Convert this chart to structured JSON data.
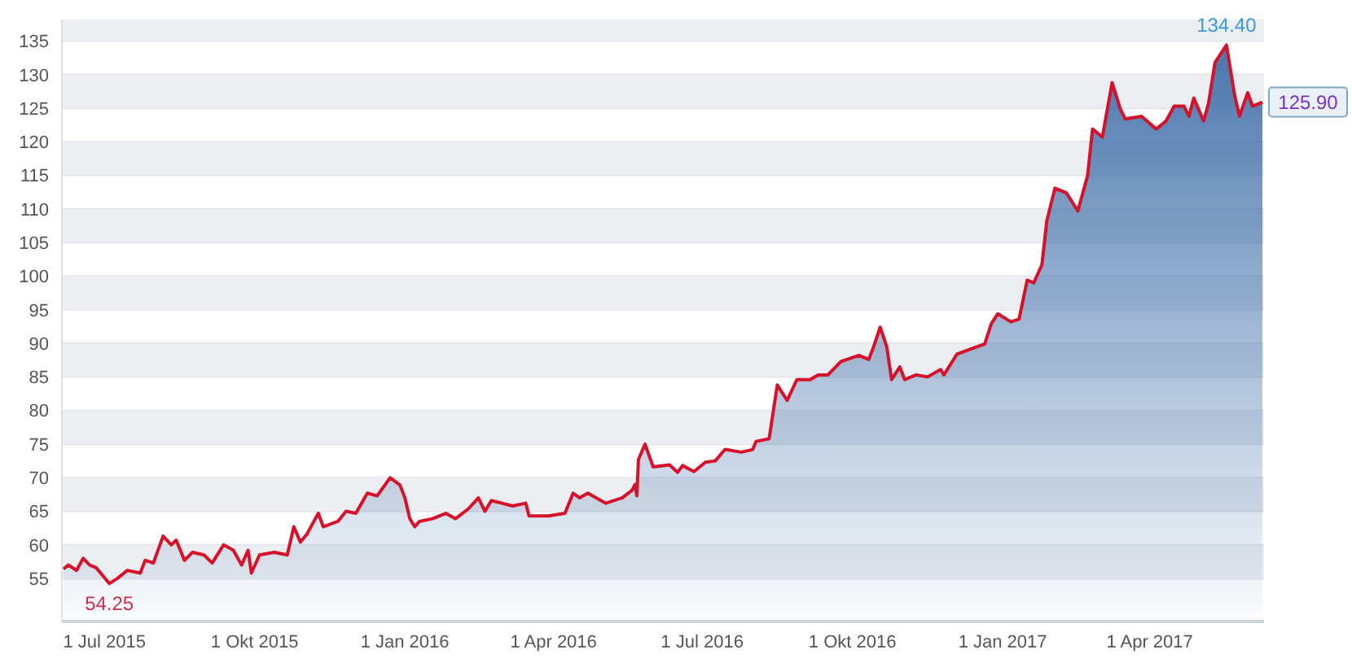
{
  "chart_data": {
    "type": "area",
    "x": [
      "2015-06-06",
      "2015-06-09",
      "2015-06-14",
      "2015-06-18",
      "2015-06-22",
      "2015-06-26",
      "2015-07-04",
      "2015-07-09",
      "2015-07-15",
      "2015-07-23",
      "2015-07-26",
      "2015-07-31",
      "2015-08-06",
      "2015-08-11",
      "2015-08-14",
      "2015-08-19",
      "2015-08-24",
      "2015-08-31",
      "2015-09-05",
      "2015-09-12",
      "2015-09-18",
      "2015-09-23",
      "2015-09-27",
      "2015-09-29",
      "2015-10-04",
      "2015-10-13",
      "2015-10-21",
      "2015-10-25",
      "2015-10-29",
      "2015-11-02",
      "2015-11-09",
      "2015-11-12",
      "2015-11-21",
      "2015-11-26",
      "2015-12-02",
      "2015-12-09",
      "2015-12-15",
      "2015-12-23",
      "2015-12-29",
      "2016-01-01",
      "2016-01-04",
      "2016-01-07",
      "2016-01-10",
      "2016-01-18",
      "2016-01-26",
      "2016-02-01",
      "2016-02-09",
      "2016-02-15",
      "2016-02-19",
      "2016-02-23",
      "2016-03-07",
      "2016-03-15",
      "2016-03-17",
      "2016-03-29",
      "2016-04-08",
      "2016-04-13",
      "2016-04-17",
      "2016-04-22",
      "2016-05-03",
      "2016-05-13",
      "2016-05-19",
      "2016-05-21",
      "2016-05-22",
      "2016-05-23",
      "2016-05-27",
      "2016-06-01",
      "2016-06-11",
      "2016-06-16",
      "2016-06-19",
      "2016-06-26",
      "2016-07-03",
      "2016-07-09",
      "2016-07-15",
      "2016-07-25",
      "2016-08-01",
      "2016-08-03",
      "2016-08-11",
      "2016-08-16",
      "2016-08-22",
      "2016-08-28",
      "2016-09-05",
      "2016-09-10",
      "2016-09-16",
      "2016-09-24",
      "2016-10-05",
      "2016-10-11",
      "2016-10-14",
      "2016-10-18",
      "2016-10-22",
      "2016-10-25",
      "2016-10-30",
      "2016-11-02",
      "2016-11-09",
      "2016-11-16",
      "2016-11-24",
      "2016-11-26",
      "2016-12-04",
      "2016-12-13",
      "2016-12-21",
      "2016-12-25",
      "2016-12-29",
      "2017-01-06",
      "2017-01-11",
      "2017-01-16",
      "2017-01-20",
      "2017-01-25",
      "2017-01-28",
      "2017-02-02",
      "2017-02-09",
      "2017-02-16",
      "2017-02-22",
      "2017-02-25",
      "2017-03-03",
      "2017-03-09",
      "2017-03-14",
      "2017-03-17",
      "2017-03-27",
      "2017-04-05",
      "2017-04-11",
      "2017-04-16",
      "2017-04-22",
      "2017-04-25",
      "2017-04-28",
      "2017-05-04",
      "2017-05-07",
      "2017-05-11",
      "2017-05-18",
      "2017-05-23",
      "2017-05-26",
      "2017-05-31",
      "2017-06-03",
      "2017-06-09"
    ],
    "series": [
      {
        "color": "#d7112a",
        "values": [
          56.4,
          57.0,
          56.2,
          58.0,
          57.0,
          56.6,
          54.25,
          55.0,
          56.2,
          55.8,
          57.7,
          57.3,
          61.3,
          60.0,
          60.7,
          57.7,
          58.9,
          58.5,
          57.3,
          60.0,
          59.2,
          57.0,
          59.2,
          55.8,
          58.5,
          58.9,
          58.5,
          62.7,
          60.4,
          61.6,
          64.7,
          62.7,
          63.5,
          65.0,
          64.7,
          67.7,
          67.3,
          70.0,
          68.9,
          67.0,
          63.9,
          62.7,
          63.5,
          63.9,
          64.7,
          63.9,
          65.4,
          67.0,
          65.0,
          66.6,
          65.8,
          66.2,
          64.3,
          64.3,
          64.7,
          67.7,
          67.0,
          67.7,
          66.2,
          67.0,
          68.1,
          69.0,
          67.3,
          72.7,
          75.0,
          71.6,
          71.9,
          70.8,
          71.8,
          70.9,
          72.3,
          72.5,
          74.2,
          73.8,
          74.2,
          75.4,
          75.8,
          83.8,
          81.5,
          84.6,
          84.6,
          85.3,
          85.3,
          87.3,
          88.2,
          87.6,
          89.5,
          92.4,
          89.5,
          84.6,
          86.5,
          84.6,
          85.3,
          85.0,
          86.1,
          85.3,
          88.4,
          89.2,
          89.9,
          92.9,
          94.4,
          93.2,
          93.6,
          99.4,
          99.0,
          101.7,
          108.2,
          113.1,
          112.4,
          109.7,
          115.0,
          121.9,
          120.7,
          128.8,
          124.9,
          123.4,
          123.8,
          121.9,
          123.1,
          125.3,
          125.3,
          123.8,
          126.5,
          123.1,
          125.7,
          131.8,
          134.4,
          126.9,
          123.8,
          127.3,
          125.3,
          125.9
        ]
      }
    ],
    "xlim": [
      "2015-06-05",
      "2017-06-10"
    ],
    "xticks": [
      {
        "value": "2015-07-01",
        "label": "1 Jul 2015"
      },
      {
        "value": "2015-10-01",
        "label": "1 Okt 2015"
      },
      {
        "value": "2016-01-01",
        "label": "1 Jan 2016"
      },
      {
        "value": "2016-04-01",
        "label": "1 Apr 2016"
      },
      {
        "value": "2016-07-01",
        "label": "1 Jul 2016"
      },
      {
        "value": "2016-10-01",
        "label": "1 Okt 2016"
      },
      {
        "value": "2017-01-01",
        "label": "1 Jan 2017"
      },
      {
        "value": "2017-04-01",
        "label": "1 Apr 2017"
      }
    ],
    "ylim": [
      48.6,
      138.2
    ],
    "yticks": [
      55,
      60,
      65,
      70,
      75,
      80,
      85,
      90,
      95,
      100,
      105,
      110,
      115,
      120,
      125,
      130,
      135
    ],
    "grid": "y",
    "annotations": [
      {
        "text": "54.25",
        "x": "2015-07-04",
        "y": 54.25
      },
      {
        "text": "134.40",
        "x": "2017-05-18",
        "y": 134.4
      },
      {
        "text": "125.90",
        "x": "2017-06-09",
        "y": 125.9
      }
    ]
  }
}
